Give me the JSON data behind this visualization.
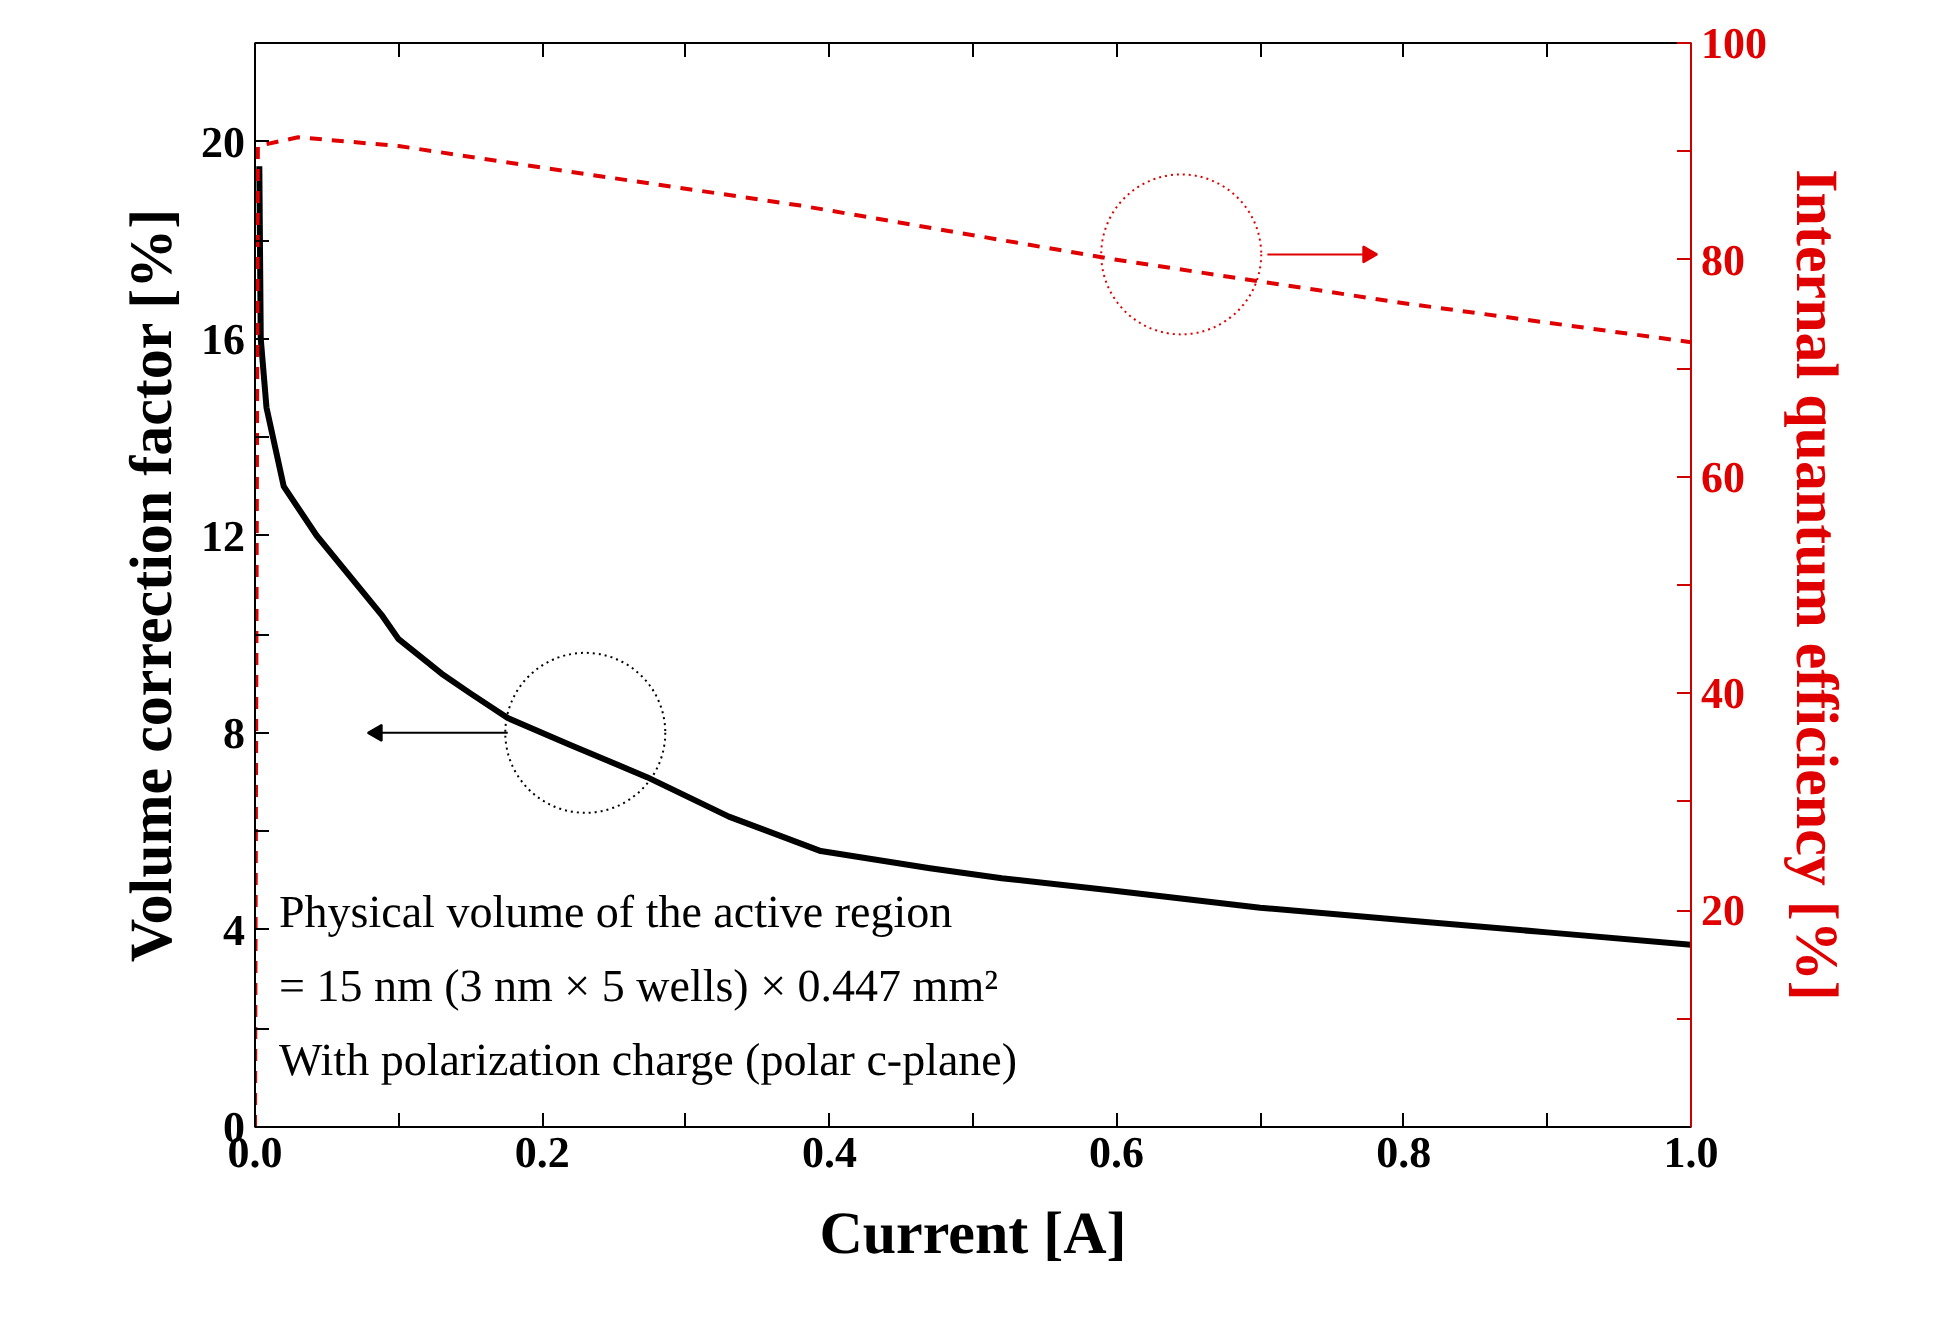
{
  "chart_data": {
    "type": "line",
    "xlabel": "Current [A]",
    "ylabel": "Volume correction factor [%]",
    "y2label": "Internal quantum efficiency [%]",
    "xlim": [
      0,
      1
    ],
    "ylim": [
      0,
      22
    ],
    "y2lim": [
      0,
      100
    ],
    "xticks": [
      {
        "value": 0,
        "label": "0.0"
      },
      {
        "value": 0.1,
        "label": null
      },
      {
        "value": 0.2,
        "label": "0.2"
      },
      {
        "value": 0.3,
        "label": null
      },
      {
        "value": 0.4,
        "label": "0.4"
      },
      {
        "value": 0.5,
        "label": null
      },
      {
        "value": 0.6,
        "label": "0.6"
      },
      {
        "value": 0.7,
        "label": null
      },
      {
        "value": 0.8,
        "label": "0.8"
      },
      {
        "value": 0.9,
        "label": null
      },
      {
        "value": 1,
        "label": "1.0"
      }
    ],
    "yticks": [
      0,
      {
        "value": 2,
        "label": null
      },
      4,
      {
        "value": 6,
        "label": null
      },
      8,
      {
        "value": 10,
        "label": null
      },
      12,
      {
        "value": 14,
        "label": null
      },
      16,
      {
        "value": 18,
        "label": null
      },
      20
    ],
    "y2ticks": [
      {
        "value": 10,
        "label": null
      },
      20,
      {
        "value": 30,
        "label": null
      },
      40,
      {
        "value": 50,
        "label": null
      },
      60,
      {
        "value": 70,
        "label": null
      },
      80,
      {
        "value": 90,
        "label": null
      },
      100
    ],
    "series": [
      {
        "color": "#000000",
        "line_style": "solid",
        "x": [
          0.003,
          0.004,
          0.008,
          0.02,
          0.043,
          0.088,
          0.1,
          0.13,
          0.15,
          0.176,
          0.22,
          0.273,
          0.33,
          0.394,
          0.47,
          0.52,
          0.597,
          0.7,
          0.799,
          0.9,
          1.0
        ],
        "values": [
          19.5,
          16,
          14.6,
          13,
          12,
          10.4,
          9.9,
          9.2,
          8.8,
          8.3,
          7.75,
          7.1,
          6.3,
          5.6,
          5.25,
          5.05,
          4.8,
          4.45,
          4.2,
          3.95,
          3.7
        ]
      },
      {
        "color": "#e00000",
        "line_style": "dashed",
        "axis": "y2",
        "x": [
          0,
          0.002,
          0.03,
          0.1,
          0.2,
          0.38,
          0.6,
          0.8,
          1.0
        ],
        "values": [
          0,
          90.5,
          91.3,
          90.5,
          88.5,
          85,
          80,
          76,
          72.4
        ]
      }
    ],
    "annotations": [
      "Physical volume of the active region",
      "= 15 nm (3 nm × 5 wells) × 0.447 mm²",
      "With polarization charge (polar c-plane)"
    ],
    "grid": false
  }
}
